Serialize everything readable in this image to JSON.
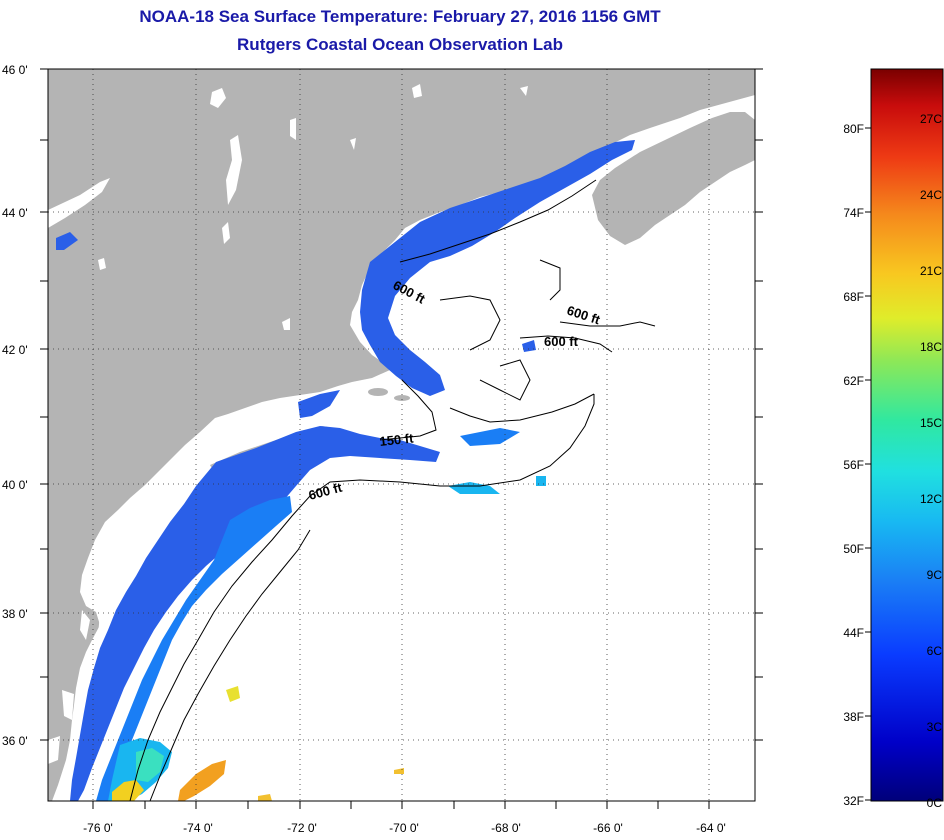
{
  "header": {
    "title": "NOAA-18 Sea Surface Temperature:  February 27, 2016 1156 GMT",
    "subtitle": "Rutgers Coastal Ocean Observation Lab"
  },
  "map": {
    "lat_labels": [
      "46 0'",
      "44 0'",
      "42 0'",
      "40 0'",
      "38 0'",
      "36 0'"
    ],
    "lon_labels": [
      "-76 0'",
      "-74 0'",
      "-72 0'",
      "-70 0'",
      "-68 0'",
      "-66 0'",
      "-64 0'"
    ],
    "contour_labels": [
      "600 ft",
      "600 ft",
      "600 ft",
      "150 ft",
      "600 ft"
    ],
    "colors": {
      "land": "#b4b4b4",
      "ocean_cloud": "#ffffff",
      "sst_cold": "#2a5fe8",
      "sst_mid": "#19b6f0",
      "sst_warm": "#f2a020"
    }
  },
  "colorbar": {
    "f_labels": [
      "80F",
      "74F",
      "68F",
      "62F",
      "56F",
      "50F",
      "44F",
      "38F",
      "32F"
    ],
    "c_labels": [
      "27C",
      "24C",
      "21C",
      "18C",
      "15C",
      "12C",
      "9C",
      "6C",
      "3C",
      "0C"
    ]
  }
}
